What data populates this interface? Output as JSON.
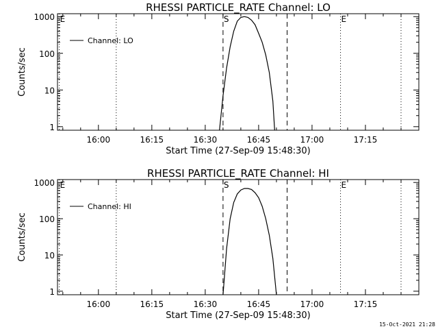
{
  "timestamp": "15-Oct-2021 21:28",
  "chart_data": [
    {
      "type": "line",
      "title": "RHESSI PARTICLE_RATE Channel: LO",
      "xlabel": "Start Time (27-Sep-09 15:48:30)",
      "ylabel": "Counts/sec",
      "yscale": "log",
      "ylim": [
        0.8,
        1200
      ],
      "xlim": [
        "15:48:30",
        "17:30:00"
      ],
      "x_ticks": [
        "16:00",
        "16:15",
        "16:30",
        "16:45",
        "17:00",
        "17:15"
      ],
      "y_ticks": [
        "1",
        "10",
        "100",
        "1000"
      ],
      "legend": "Channel: LO",
      "legend_position": "top-left",
      "series": [
        {
          "name": "Channel: LO",
          "x": [
            "16:34:00",
            "16:35:00",
            "16:36:00",
            "16:37:00",
            "16:38:00",
            "16:39:00",
            "16:40:00",
            "16:41:00",
            "16:42:00",
            "16:43:00",
            "16:44:00",
            "16:45:00",
            "16:46:00",
            "16:47:00",
            "16:48:00",
            "16:49:00",
            "16:49:30"
          ],
          "y": [
            0.8,
            7,
            40,
            150,
            400,
            750,
            950,
            1000,
            950,
            800,
            600,
            350,
            200,
            90,
            30,
            5,
            0.8
          ]
        }
      ],
      "vlines": [
        {
          "time": "15:49:00",
          "style": "dotted",
          "label": "E"
        },
        {
          "time": "16:05:00",
          "style": "dotted",
          "label": ""
        },
        {
          "time": "16:35:00",
          "style": "dashed",
          "label": "S"
        },
        {
          "time": "16:53:00",
          "style": "dashed",
          "label": ""
        },
        {
          "time": "17:08:00",
          "style": "dotted",
          "label": "E"
        },
        {
          "time": "17:25:00",
          "style": "dotted",
          "label": ""
        }
      ]
    },
    {
      "type": "line",
      "title": "RHESSI PARTICLE_RATE Channel: HI",
      "xlabel": "Start Time (27-Sep-09 15:48:30)",
      "ylabel": "Counts/sec",
      "yscale": "log",
      "ylim": [
        0.8,
        1200
      ],
      "xlim": [
        "15:48:30",
        "17:30:00"
      ],
      "x_ticks": [
        "16:00",
        "16:15",
        "16:30",
        "16:45",
        "17:00",
        "17:15"
      ],
      "y_ticks": [
        "1",
        "10",
        "100",
        "1000"
      ],
      "legend": "Channel: HI",
      "legend_position": "top-left",
      "series": [
        {
          "name": "Channel: HI",
          "x": [
            "16:35:00",
            "16:36:00",
            "16:37:00",
            "16:38:00",
            "16:39:00",
            "16:40:00",
            "16:41:00",
            "16:42:00",
            "16:43:00",
            "16:44:00",
            "16:45:00",
            "16:46:00",
            "16:47:00",
            "16:48:00",
            "16:49:00",
            "16:50:00"
          ],
          "y": [
            0.8,
            15,
            100,
            280,
            480,
            620,
            680,
            680,
            640,
            520,
            380,
            220,
            100,
            35,
            8,
            0.8
          ]
        }
      ],
      "vlines": [
        {
          "time": "15:49:00",
          "style": "dotted",
          "label": "E"
        },
        {
          "time": "16:05:00",
          "style": "dotted",
          "label": ""
        },
        {
          "time": "16:35:00",
          "style": "dashed",
          "label": "S"
        },
        {
          "time": "16:53:00",
          "style": "dashed",
          "label": ""
        },
        {
          "time": "17:08:00",
          "style": "dotted",
          "label": "E"
        },
        {
          "time": "17:25:00",
          "style": "dotted",
          "label": ""
        }
      ]
    }
  ]
}
